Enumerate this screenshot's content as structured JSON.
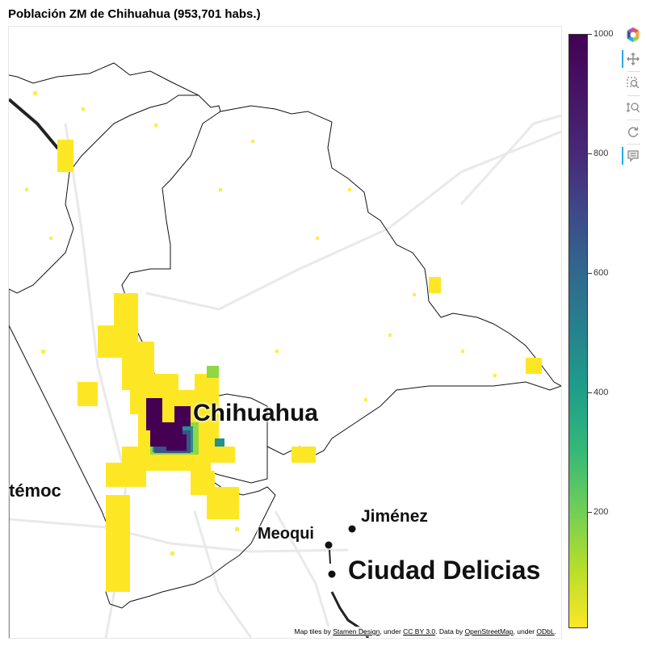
{
  "title": "Población ZM de Chihuahua (953,701 habs.)",
  "labels": {
    "chihuahua": "Chihuahua",
    "cuauhtemoc": "témoc",
    "jimenez": "Jiménez",
    "meoqui": "Meoqui",
    "delicias": "Ciudad Delicias"
  },
  "attribution": {
    "prefix": "Map tiles by ",
    "stamen": "Stamen Design",
    "mid1": ", under ",
    "ccby": "CC BY 3.0",
    "mid2": ". Data by ",
    "osm": "OpenStreetMap",
    "mid3": ", under ",
    "odbl": "ODbL",
    "end": "."
  },
  "colorbar": {
    "ticks": [
      "1000",
      "800",
      "600",
      "400",
      "200"
    ],
    "colormap": "viridis-reversed",
    "min": 0,
    "max": 1000
  },
  "colors": {
    "low": "#fde725",
    "high": "#440154",
    "boundary": "#000000",
    "tool_active": "#26aae1"
  },
  "toolbar": {
    "items": [
      "bokeh-logo-icon",
      "pan-icon",
      "box-zoom-icon",
      "wheel-zoom-icon",
      "reset-icon",
      "hover-icon"
    ]
  }
}
